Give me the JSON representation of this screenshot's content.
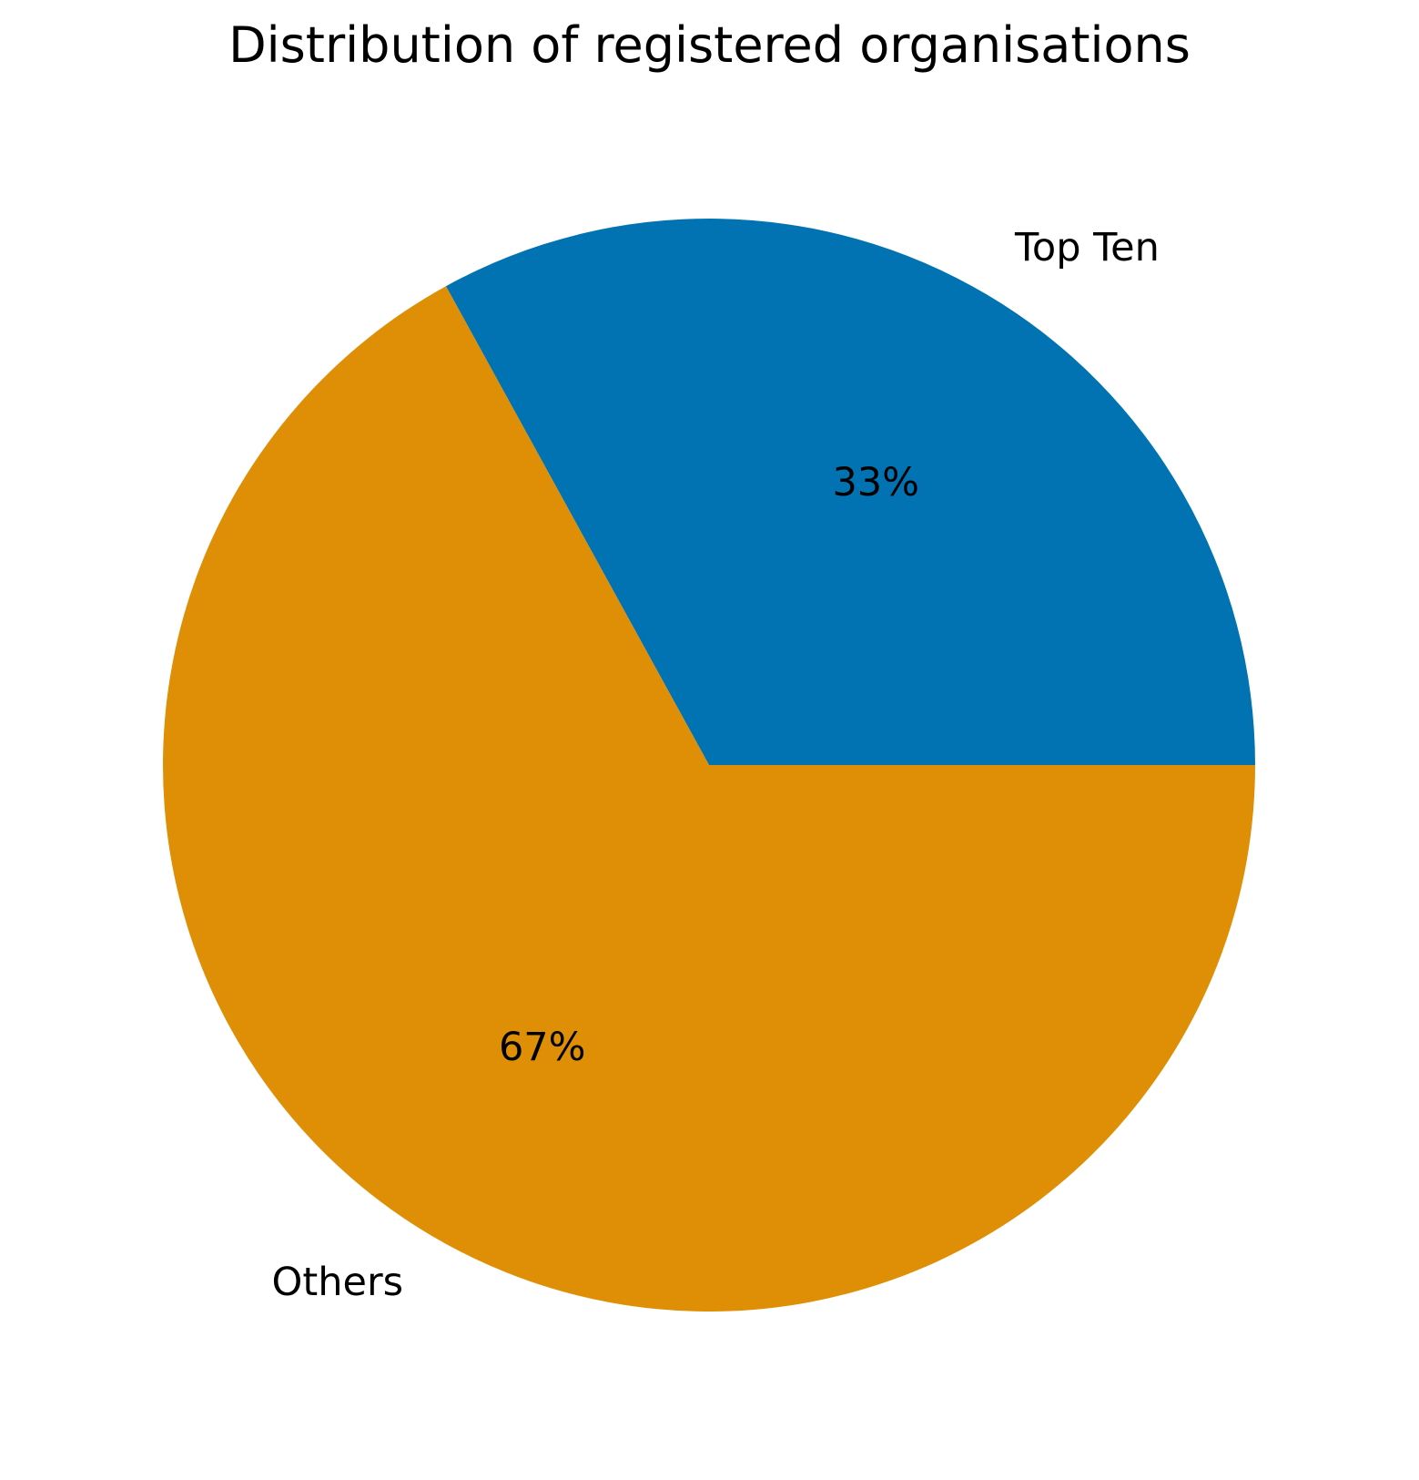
{
  "chart_data": {
    "type": "pie",
    "title": "Distribution of registered organisations",
    "labels": [
      "Top Ten",
      "Others"
    ],
    "values": [
      33,
      67
    ],
    "value_labels": [
      "33%",
      "67%"
    ],
    "colors": [
      "#0173b2",
      "#de8f05"
    ],
    "start_angle_deg": 0,
    "direction": "counterclockwise"
  }
}
